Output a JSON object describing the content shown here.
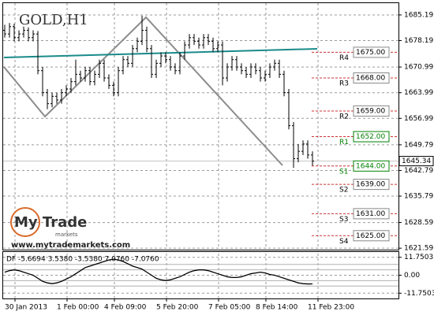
{
  "chart_data": {
    "type": "ohlc",
    "title": "GOLD,H1",
    "categories": [
      "30 Jan 2013",
      null,
      null,
      null,
      null,
      null,
      null,
      null,
      null,
      null,
      null,
      "1 Feb 00:00",
      null,
      null,
      null,
      null,
      null,
      null,
      null,
      null,
      null,
      "4 Feb 09:00",
      null,
      null,
      null,
      null,
      null,
      null,
      null,
      null,
      null,
      null,
      "5 Feb 20:00",
      null,
      null,
      null,
      null,
      null,
      null,
      null,
      null,
      null,
      null,
      "7 Feb 05:00",
      null,
      null,
      null,
      null,
      null,
      null,
      null,
      null,
      null,
      "8 Feb 14:00",
      null,
      null,
      null,
      null,
      null,
      null,
      null,
      null,
      null,
      null,
      "11 Feb 23:00",
      null
    ],
    "open": [
      1681,
      1680,
      1682,
      1679,
      1680,
      1681,
      1679,
      1680,
      1670,
      1664,
      1661,
      1663,
      1662,
      1664,
      1665,
      1667,
      1669,
      1668,
      1670,
      1667,
      1669,
      1672,
      1668,
      1666,
      1664,
      1670,
      1673,
      1672,
      1676,
      1678,
      1681,
      1676,
      1669,
      1672,
      1674,
      1673,
      1671,
      1670,
      1674,
      1677,
      1679,
      1678,
      1677,
      1679,
      1678,
      1676,
      1677,
      1668,
      1671,
      1673,
      1671,
      1670,
      1669,
      1671,
      1670,
      1668,
      1669,
      1671,
      1672,
      1669,
      1664,
      1655,
      1646,
      1648,
      1650,
      1647
    ],
    "high": [
      1682.5,
      1683,
      1682.8,
      1681,
      1682,
      1681.8,
      1681,
      1680.8,
      1671,
      1665,
      1664,
      1664,
      1665,
      1666,
      1668,
      1673,
      1670,
      1671,
      1671,
      1670,
      1673,
      1673,
      1669,
      1667,
      1671,
      1674,
      1674,
      1677,
      1679,
      1685,
      1682,
      1677,
      1673,
      1675,
      1675,
      1674,
      1672,
      1675,
      1678,
      1680,
      1680,
      1679,
      1680,
      1680,
      1679,
      1678,
      1678,
      1672,
      1674,
      1674,
      1672,
      1671,
      1672,
      1672,
      1671,
      1670,
      1672,
      1673,
      1673,
      1670,
      1665,
      1656,
      1650,
      1651,
      1651,
      1648
    ],
    "low": [
      1679,
      1679,
      1678,
      1678,
      1679,
      1678,
      1678,
      1669,
      1663,
      1659.5,
      1660,
      1661,
      1661,
      1663,
      1664,
      1666,
      1667,
      1667,
      1666,
      1666,
      1668,
      1667,
      1665,
      1663,
      1663,
      1669,
      1671,
      1671,
      1675,
      1677,
      1675,
      1668,
      1668,
      1671,
      1672,
      1670,
      1669,
      1669,
      1673,
      1676,
      1677,
      1676,
      1676,
      1677,
      1675,
      1675,
      1666,
      1667,
      1670,
      1670,
      1669,
      1668,
      1668,
      1669,
      1667,
      1667,
      1668,
      1670,
      1668,
      1663,
      1654,
      1643.5,
      1645,
      1647,
      1646,
      1644
    ],
    "close": [
      1680,
      1682,
      1679,
      1680,
      1681,
      1679,
      1680,
      1670,
      1664,
      1661,
      1663,
      1662,
      1664,
      1665,
      1667,
      1669,
      1668,
      1670,
      1667,
      1669,
      1672,
      1668,
      1666,
      1664,
      1670,
      1673,
      1672,
      1676,
      1678,
      1681,
      1676,
      1669,
      1672,
      1674,
      1673,
      1671,
      1670,
      1674,
      1677,
      1679,
      1678,
      1677,
      1679,
      1678,
      1676,
      1677,
      1668,
      1671,
      1673,
      1671,
      1670,
      1669,
      1671,
      1670,
      1668,
      1669,
      1671,
      1672,
      1669,
      1664,
      1655,
      1646,
      1648,
      1650,
      1647,
      1645.34
    ],
    "color": "#000000",
    "ylim": [
      1621.2,
      1688.4
    ],
    "yticks": [
      1685.19,
      1678.19,
      1670.99,
      1663.99,
      1656.99,
      1649.79,
      1642.79,
      1635.79,
      1628.59,
      1621.59
    ],
    "grid": true,
    "current_price": 1645.34,
    "pivots": [
      {
        "name": "R4",
        "value": 1675,
        "value_label": "1675.00",
        "color": "#000000"
      },
      {
        "name": "R3",
        "value": 1668,
        "value_label": "1668.00",
        "color": "#000000"
      },
      {
        "name": "R2",
        "value": 1659,
        "value_label": "1659.00",
        "color": "#000000"
      },
      {
        "name": "R1",
        "value": 1652,
        "value_label": "1652.00",
        "color": "#008000"
      },
      {
        "name": "S1",
        "value": 1644,
        "value_label": "1644.00",
        "color": "#008000"
      },
      {
        "name": "S2",
        "value": 1639,
        "value_label": "1639.00",
        "color": "#000000"
      },
      {
        "name": "S3",
        "value": 1631,
        "value_label": "1631.00",
        "color": "#000000"
      },
      {
        "name": "S4",
        "value": 1625,
        "value_label": "1625.00",
        "color": "#000000"
      }
    ],
    "indicator": {
      "type": "line",
      "title": "DF -5.6694 3.5380 -3.5380 7.0760 -7.0760",
      "values": [
        2,
        3,
        3.5,
        3,
        2,
        1,
        0,
        -2,
        -4,
        -5,
        -5.5,
        -5,
        -4,
        -2.5,
        -1,
        1,
        3,
        5,
        6,
        7,
        8,
        9,
        10,
        10.5,
        10,
        9,
        7.5,
        6,
        5,
        4,
        2,
        0,
        -2,
        -3,
        -3.5,
        -3,
        -2,
        -1,
        0.5,
        2,
        3,
        3.5,
        3.5,
        3,
        2,
        1,
        0,
        -1,
        -1.5,
        -1.5,
        -1,
        0,
        1,
        1.5,
        2,
        1.5,
        0.5,
        0,
        -1,
        -2,
        -3,
        -4,
        -5,
        -5.5,
        -5.7,
        -5.6694
      ],
      "color": "#000000",
      "bands": [
        3.538,
        -3.538,
        7.076,
        -7.076
      ],
      "band_color": "#b0b0b0",
      "ylim": [
        -15.2,
        15.2
      ],
      "yticks": [
        11.7503,
        {
          "value": 0,
          "label": "0.00"
        },
        -11.7503
      ]
    }
  },
  "watermark": {
    "brand": "My Trade",
    "sub": "markets",
    "url": "www.mytrademarkets.com"
  }
}
